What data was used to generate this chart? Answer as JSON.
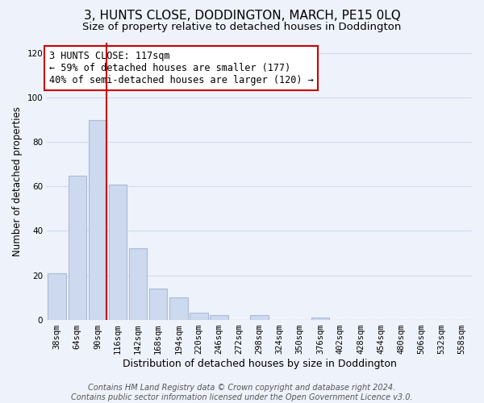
{
  "title": "3, HUNTS CLOSE, DODDINGTON, MARCH, PE15 0LQ",
  "subtitle": "Size of property relative to detached houses in Doddington",
  "xlabel": "Distribution of detached houses by size in Doddington",
  "ylabel": "Number of detached properties",
  "bin_labels": [
    "38sqm",
    "64sqm",
    "90sqm",
    "116sqm",
    "142sqm",
    "168sqm",
    "194sqm",
    "220sqm",
    "246sqm",
    "272sqm",
    "298sqm",
    "324sqm",
    "350sqm",
    "376sqm",
    "402sqm",
    "428sqm",
    "454sqm",
    "480sqm",
    "506sqm",
    "532sqm",
    "558sqm"
  ],
  "bar_values": [
    21,
    65,
    90,
    61,
    32,
    14,
    10,
    3,
    2,
    0,
    2,
    0,
    0,
    1,
    0,
    0,
    0,
    0,
    0,
    0,
    0
  ],
  "bar_color": "#ccd9ee",
  "bar_edge_color": "#aabbd8",
  "property_line_color": "#cc0000",
  "ylim": [
    0,
    125
  ],
  "yticks": [
    0,
    20,
    40,
    60,
    80,
    100,
    120
  ],
  "annotation_line1": "3 HUNTS CLOSE: 117sqm",
  "annotation_line2": "← 59% of detached houses are smaller (177)",
  "annotation_line3": "40% of semi-detached houses are larger (120) →",
  "annotation_box_color": "#ffffff",
  "annotation_box_edge": "#cc0000",
  "footer_line1": "Contains HM Land Registry data © Crown copyright and database right 2024.",
  "footer_line2": "Contains public sector information licensed under the Open Government Licence v3.0.",
  "background_color": "#eef2fa",
  "grid_color": "#d0dcf0",
  "title_fontsize": 11,
  "subtitle_fontsize": 9.5,
  "xlabel_fontsize": 9,
  "ylabel_fontsize": 8.5,
  "tick_fontsize": 7.5,
  "footer_fontsize": 7,
  "annotation_fontsize": 8.5
}
